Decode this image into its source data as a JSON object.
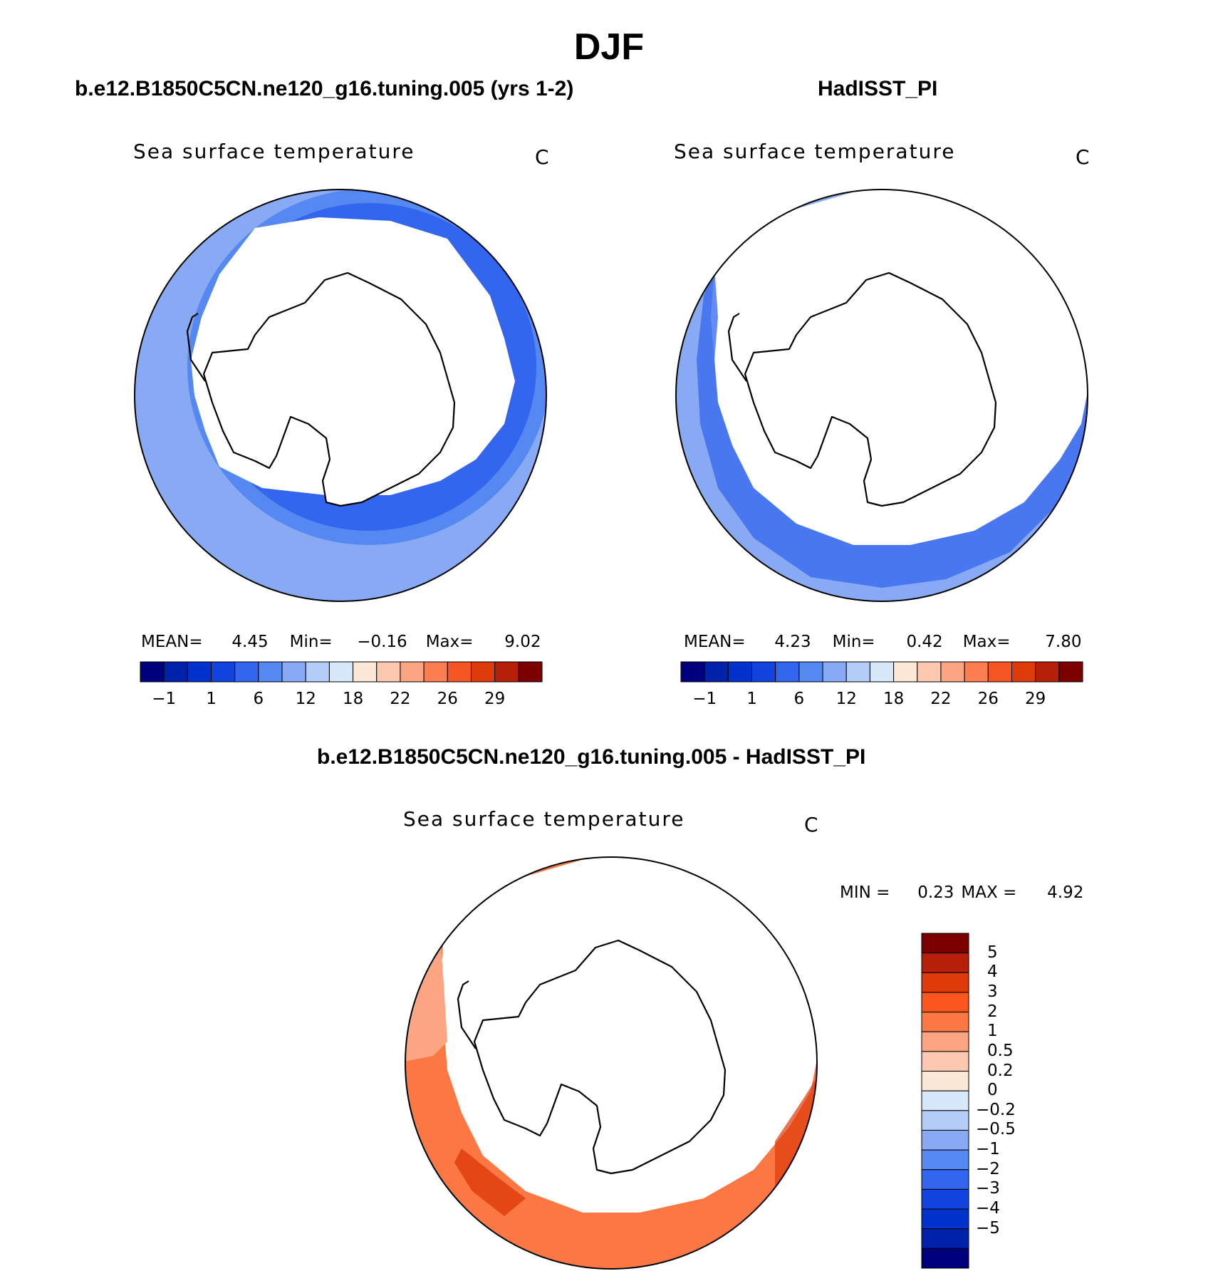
{
  "figure": {
    "title": "DJF"
  },
  "panels": {
    "model": {
      "title": "b.e12.B1850C5CN.ne120_g16.tuning.005 (yrs 1-2)",
      "variable": "Sea surface temperature",
      "units": "C",
      "stats": {
        "mean_label": "MEAN=",
        "mean": "4.45",
        "min_label": "Min=",
        "min": "−0.16",
        "max_label": "Max=",
        "max": "9.02"
      }
    },
    "obs": {
      "title": "HadISST_PI",
      "variable": "Sea surface temperature",
      "units": "C",
      "stats": {
        "mean_label": "MEAN=",
        "mean": "4.23",
        "min_label": "Min=",
        "min": "0.42",
        "max_label": "Max=",
        "max": "7.80"
      }
    },
    "diff": {
      "title": "b.e12.B1850C5CN.ne120_g16.tuning.005 - HadISST_PI",
      "variable": "Sea surface temperature",
      "units": "C",
      "stats": {
        "min_label": "MIN =",
        "min": "0.23",
        "max_label": "MAX =",
        "max": "4.92"
      }
    }
  },
  "colorbars": {
    "abs": {
      "colors": [
        "#00007f",
        "#0022aa",
        "#0033cc",
        "#1144dd",
        "#3366ee",
        "#5588f0",
        "#88aaf5",
        "#b3ccf8",
        "#d7e8fb",
        "#fde8d8",
        "#fcc8b0",
        "#fca583",
        "#fb7d50",
        "#f65623",
        "#de3b0a",
        "#b62008",
        "#7d0000"
      ],
      "tick_labels": [
        "−1",
        "1",
        "6",
        "12",
        "18",
        "22",
        "26",
        "29"
      ]
    },
    "diff": {
      "colors": [
        "#7d0000",
        "#b62008",
        "#de3b0a",
        "#fb5520",
        "#fb7844",
        "#fca583",
        "#fcc8b0",
        "#fde8d8",
        "#d7e8fb",
        "#b3ccf8",
        "#88aaf5",
        "#5588f0",
        "#3366ee",
        "#1144dd",
        "#0033cc",
        "#0022aa",
        "#00007f"
      ],
      "tick_labels": [
        "5",
        "4",
        "3",
        "2",
        "1",
        "0.5",
        "0.2",
        "0",
        "−0.2",
        "−0.5",
        "−1",
        "−2",
        "−3",
        "−4",
        "−5"
      ]
    }
  },
  "map_colors": {
    "ocean_model_outer": "#88aaf5",
    "ocean_model_mid": "#5588f0",
    "ocean_model_inner": "#3366ee",
    "ocean_obs_outer": "#88aaf5",
    "ocean_obs_inner": "#3366ee",
    "diff_low": "#fca583",
    "diff_mid": "#fb7844",
    "diff_high": "#de3b0a",
    "land": "#ffffff",
    "coast": "#000000"
  }
}
